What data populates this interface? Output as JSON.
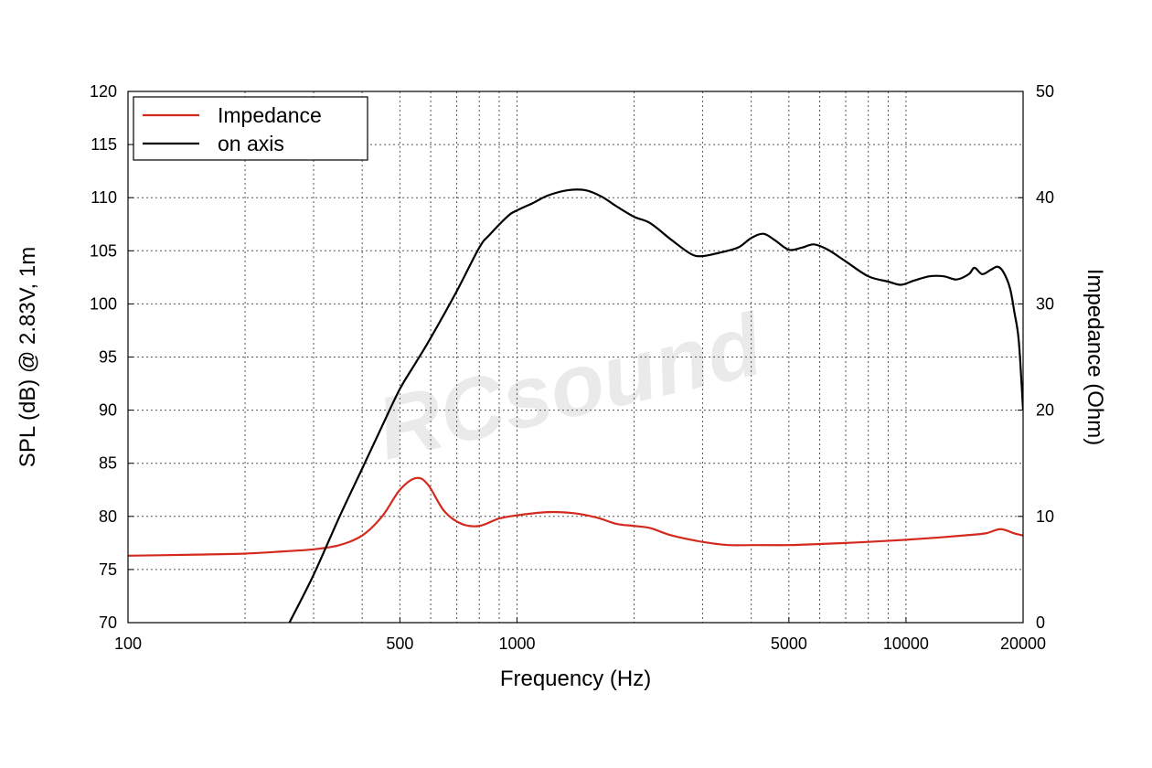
{
  "chart_data": {
    "type": "line",
    "x_scale": "log",
    "xlabel": "Frequency (Hz)",
    "ylabel": "SPL (dB) @ 2.83V, 1m",
    "y2label": "Impedance (Ohm)",
    "xlim": [
      100,
      20000
    ],
    "ylim": [
      70,
      120
    ],
    "y2lim": [
      0,
      50
    ],
    "x_ticks": [
      {
        "value": 100,
        "label": "100"
      },
      {
        "value": 500,
        "label": "500"
      },
      {
        "value": 1000,
        "label": "1000"
      },
      {
        "value": 5000,
        "label": "5000"
      },
      {
        "value": 10000,
        "label": "10000"
      },
      {
        "value": 20000,
        "label": "20000"
      }
    ],
    "x_gridlines": [
      200,
      300,
      400,
      500,
      600,
      700,
      800,
      900,
      1000,
      2000,
      3000,
      4000,
      5000,
      6000,
      7000,
      8000,
      9000,
      10000
    ],
    "y_ticks": [
      {
        "value": 70,
        "label": "70"
      },
      {
        "value": 75,
        "label": "75"
      },
      {
        "value": 80,
        "label": "80"
      },
      {
        "value": 85,
        "label": "85"
      },
      {
        "value": 90,
        "label": "90"
      },
      {
        "value": 95,
        "label": "95"
      },
      {
        "value": 100,
        "label": "100"
      },
      {
        "value": 105,
        "label": "105"
      },
      {
        "value": 110,
        "label": "110"
      },
      {
        "value": 115,
        "label": "115"
      },
      {
        "value": 120,
        "label": "120"
      }
    ],
    "y2_ticks": [
      {
        "value": 0,
        "label": "0"
      },
      {
        "value": 10,
        "label": "10"
      },
      {
        "value": 20,
        "label": "20"
      },
      {
        "value": 30,
        "label": "30"
      },
      {
        "value": 40,
        "label": "40"
      },
      {
        "value": 50,
        "label": "50"
      }
    ],
    "grid": true,
    "legend_position": "top-left",
    "series": [
      {
        "name": "Impedance",
        "axis": "right",
        "color": "#d42a1e",
        "points": [
          [
            100,
            6.3
          ],
          [
            150,
            6.4
          ],
          [
            200,
            6.5
          ],
          [
            250,
            6.7
          ],
          [
            300,
            6.9
          ],
          [
            350,
            7.3
          ],
          [
            400,
            8.2
          ],
          [
            450,
            10.0
          ],
          [
            500,
            12.5
          ],
          [
            550,
            13.6
          ],
          [
            590,
            13.0
          ],
          [
            650,
            10.5
          ],
          [
            720,
            9.3
          ],
          [
            800,
            9.1
          ],
          [
            900,
            9.8
          ],
          [
            1000,
            10.1
          ],
          [
            1200,
            10.4
          ],
          [
            1400,
            10.3
          ],
          [
            1600,
            9.9
          ],
          [
            1800,
            9.3
          ],
          [
            2000,
            9.1
          ],
          [
            2200,
            8.9
          ],
          [
            2500,
            8.2
          ],
          [
            3000,
            7.6
          ],
          [
            3500,
            7.3
          ],
          [
            4000,
            7.3
          ],
          [
            5000,
            7.3
          ],
          [
            6000,
            7.4
          ],
          [
            7000,
            7.5
          ],
          [
            8000,
            7.6
          ],
          [
            10000,
            7.8
          ],
          [
            12000,
            8.0
          ],
          [
            14000,
            8.2
          ],
          [
            16000,
            8.4
          ],
          [
            17500,
            8.8
          ],
          [
            19000,
            8.4
          ],
          [
            20000,
            8.2
          ]
        ]
      },
      {
        "name": "on axis",
        "axis": "left",
        "color": "#000000",
        "points": [
          [
            260,
            70.0
          ],
          [
            300,
            74.5
          ],
          [
            350,
            80.0
          ],
          [
            400,
            84.5
          ],
          [
            450,
            88.5
          ],
          [
            500,
            92.0
          ],
          [
            550,
            94.5
          ],
          [
            600,
            96.8
          ],
          [
            700,
            101.2
          ],
          [
            800,
            105.3
          ],
          [
            850,
            106.5
          ],
          [
            950,
            108.3
          ],
          [
            1000,
            108.8
          ],
          [
            1100,
            109.5
          ],
          [
            1200,
            110.2
          ],
          [
            1350,
            110.7
          ],
          [
            1500,
            110.7
          ],
          [
            1650,
            110.1
          ],
          [
            1800,
            109.2
          ],
          [
            2000,
            108.2
          ],
          [
            2200,
            107.6
          ],
          [
            2500,
            106.0
          ],
          [
            2800,
            104.7
          ],
          [
            3000,
            104.5
          ],
          [
            3300,
            104.8
          ],
          [
            3700,
            105.3
          ],
          [
            4000,
            106.2
          ],
          [
            4300,
            106.6
          ],
          [
            4600,
            106.0
          ],
          [
            5000,
            105.1
          ],
          [
            5400,
            105.3
          ],
          [
            5800,
            105.6
          ],
          [
            6300,
            105.1
          ],
          [
            7000,
            104.0
          ],
          [
            8000,
            102.6
          ],
          [
            9000,
            102.1
          ],
          [
            9700,
            101.8
          ],
          [
            10500,
            102.2
          ],
          [
            11500,
            102.6
          ],
          [
            12500,
            102.6
          ],
          [
            13500,
            102.3
          ],
          [
            14500,
            102.8
          ],
          [
            15000,
            103.4
          ],
          [
            15700,
            102.8
          ],
          [
            16500,
            103.2
          ],
          [
            17200,
            103.5
          ],
          [
            17800,
            103.0
          ],
          [
            18500,
            101.5
          ],
          [
            19000,
            99.2
          ],
          [
            19500,
            96.5
          ],
          [
            20000,
            90.0
          ]
        ]
      }
    ]
  },
  "watermark": {
    "text": "RCsound"
  }
}
